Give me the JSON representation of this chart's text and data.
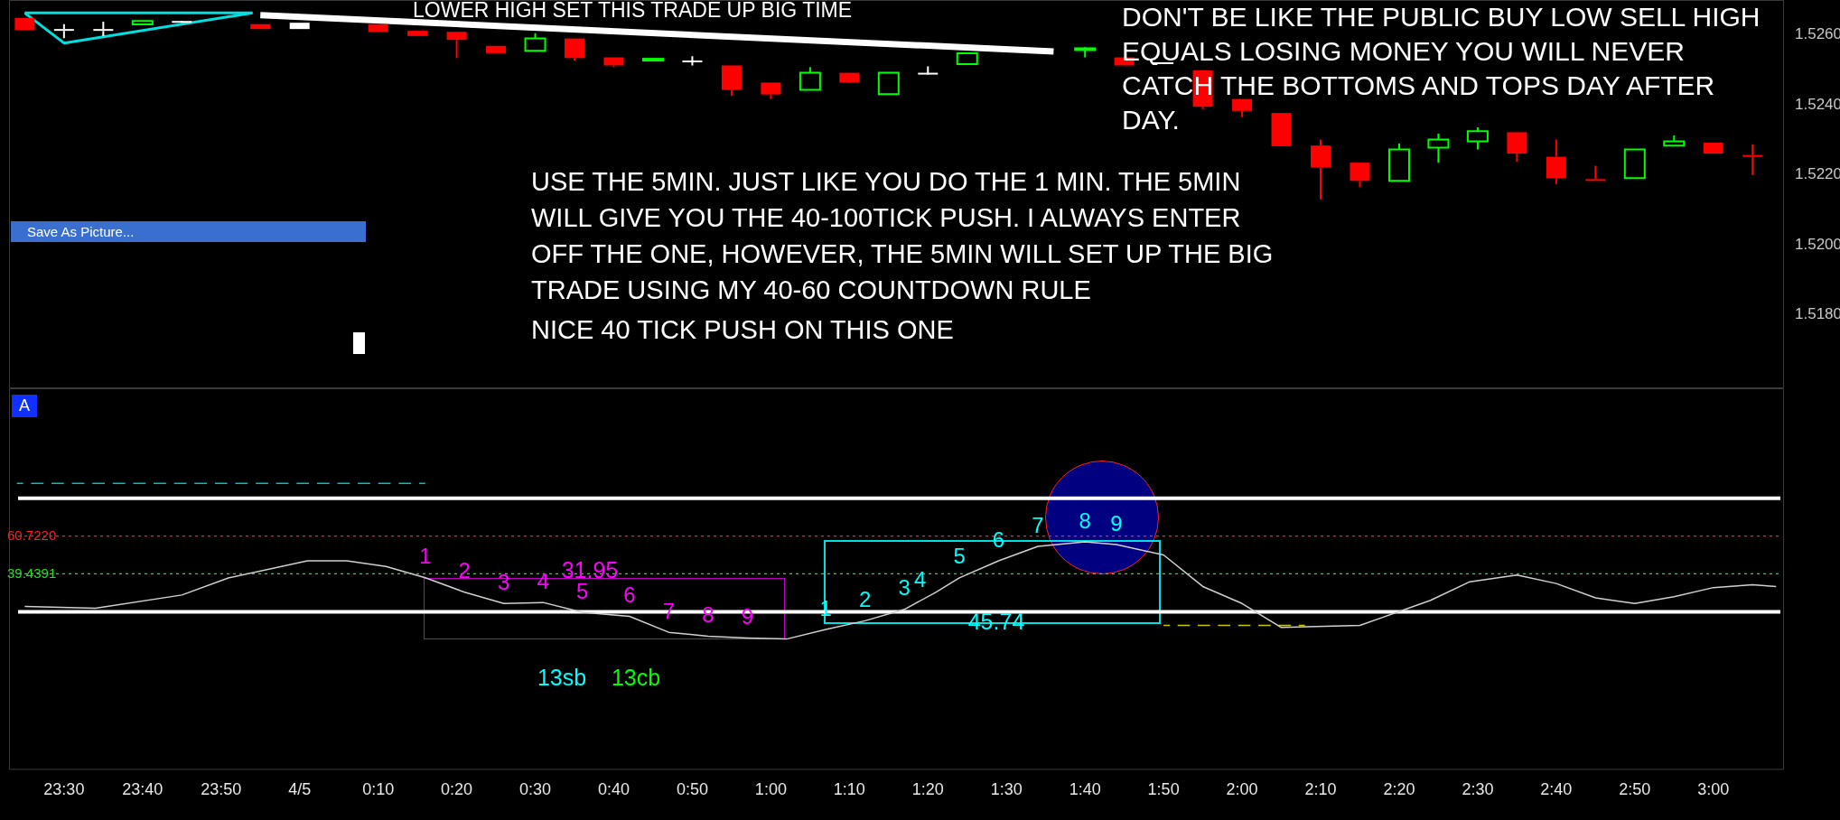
{
  "chart_data": [
    {
      "type": "candlestick",
      "x": [
        "--04-04T23:25",
        "--04-04T23:30",
        "--04-04T23:35",
        "--04-04T23:40",
        "--04-04T23:45",
        "--04-04T23:55",
        "--04-05T00:00",
        "--04-05T00:10",
        "--04-05T00:15",
        "--04-05T00:20",
        "--04-05T00:25",
        "--04-05T00:30",
        "--04-05T00:35",
        "--04-05T00:40",
        "--04-05T00:45",
        "--04-05T00:50",
        "--04-05T00:55",
        "--04-05T01:00",
        "--04-05T01:05",
        "--04-05T01:10",
        "--04-05T01:15",
        "--04-05T01:20",
        "--04-05T01:25",
        "--04-05T01:40",
        "--04-05T01:45",
        "--04-05T01:50",
        "--04-05T01:55",
        "--04-05T02:00",
        "--04-05T02:05",
        "--04-05T02:10",
        "--04-05T02:15",
        "--04-05T02:20",
        "--04-05T02:25",
        "--04-05T02:30",
        "--04-05T02:35",
        "--04-05T02:40",
        "--04-05T02:45",
        "--04-05T02:50",
        "--04-05T02:55",
        "--04-05T03:00",
        "--04-05T03:05"
      ],
      "ohlc": [
        [
          1.52649,
          1.52649,
          1.52614,
          1.52614
        ],
        [
          1.52617,
          1.52631,
          1.52591,
          1.52617
        ],
        [
          1.52617,
          1.52638,
          1.52597,
          1.52617
        ],
        [
          1.5263,
          1.5264,
          1.5263,
          1.5264
        ],
        [
          1.5264,
          1.5264,
          1.5264,
          1.5264
        ],
        [
          1.52631,
          1.52631,
          1.52617,
          1.52617
        ],
        [
          1.52635,
          1.52635,
          1.52617,
          1.52617
        ],
        [
          1.52631,
          1.52631,
          1.52609,
          1.52609
        ],
        [
          1.52612,
          1.52612,
          1.52597,
          1.52597
        ],
        [
          1.52609,
          1.52609,
          1.52534,
          1.52586
        ],
        [
          1.52569,
          1.52569,
          1.52548,
          1.52548
        ],
        [
          1.52555,
          1.52605,
          1.52555,
          1.5259
        ],
        [
          1.5259,
          1.5259,
          1.52527,
          1.52534
        ],
        [
          1.52536,
          1.52536,
          1.52508,
          1.52513
        ],
        [
          1.52528,
          1.52532,
          1.52528,
          1.52532
        ],
        [
          1.52527,
          1.52539,
          1.52513,
          1.52527
        ],
        [
          1.52513,
          1.52513,
          1.52426,
          1.52443
        ],
        [
          1.52464,
          1.52464,
          1.52417,
          1.5243
        ],
        [
          1.52443,
          1.52508,
          1.52443,
          1.52492
        ],
        [
          1.52492,
          1.52492,
          1.52464,
          1.52464
        ],
        [
          1.52431,
          1.52492,
          1.52431,
          1.52492
        ],
        [
          1.52492,
          1.5251,
          1.52492,
          1.52492
        ],
        [
          1.52517,
          1.52548,
          1.52517,
          1.52548
        ],
        [
          1.52557,
          1.52565,
          1.52536,
          1.52562
        ],
        [
          1.52536,
          1.52536,
          1.52513,
          1.52513
        ],
        [
          1.52522,
          1.52522,
          1.52522,
          1.52522
        ],
        [
          1.52499,
          1.52499,
          1.52388,
          1.52395
        ],
        [
          1.52417,
          1.52417,
          1.52365,
          1.52383
        ],
        [
          1.52377,
          1.52377,
          1.52282,
          1.52282
        ],
        [
          1.52284,
          1.52301,
          1.5213,
          1.52221
        ],
        [
          1.52235,
          1.52235,
          1.52165,
          1.52183
        ],
        [
          1.52183,
          1.5229,
          1.52183,
          1.52273
        ],
        [
          1.52278,
          1.52318,
          1.52235,
          1.52301
        ],
        [
          1.52296,
          1.52336,
          1.52273,
          1.52325
        ],
        [
          1.52322,
          1.52322,
          1.52238,
          1.52261
        ],
        [
          1.52252,
          1.52301,
          1.52174,
          1.52191
        ],
        [
          1.52188,
          1.52226,
          1.52183,
          1.52186
        ],
        [
          1.52191,
          1.52273,
          1.52191,
          1.52273
        ],
        [
          1.52284,
          1.52313,
          1.52284,
          1.52296
        ],
        [
          1.52292,
          1.52292,
          1.52261,
          1.52261
        ],
        [
          1.52257,
          1.52287,
          1.522,
          1.52256
        ]
      ],
      "colors": [
        "#ff0000",
        "#ffffff",
        "#ffffff",
        "#00ff00",
        "#ffffff",
        "#ff0000",
        "#ffffff",
        "#ff0000",
        "#ff0000",
        "#ff0000",
        "#ff0000",
        "#00ff00",
        "#ff0000",
        "#ff0000",
        "#00ff00",
        "#ffffff",
        "#ff0000",
        "#ff0000",
        "#00ff00",
        "#ff0000",
        "#00ff00",
        "#ffffff",
        "#00ff00",
        "#00ff00",
        "#ff0000",
        "#ffffff",
        "#ff0000",
        "#ff0000",
        "#ff0000",
        "#ff0000",
        "#ff0000",
        "#00ff00",
        "#00ff00",
        "#00ff00",
        "#ff0000",
        "#ff0000",
        "#ff0000",
        "#00ff00",
        "#00ff00",
        "#ff0000",
        "#ff0000"
      ],
      "series": [
        {
          "type": "line",
          "color": "#ffffff",
          "x": [
            "--04-04T23:55",
            "--04-05T01:36"
          ],
          "values": [
            1.52657,
            1.52553
          ]
        },
        {
          "type": "line",
          "color": "#00e0e0",
          "x": [
            "--04-04T23:25",
            "--04-04T23:30",
            "--04-04T23:54"
          ],
          "values": [
            1.52663,
            1.52577,
            1.52663
          ]
        },
        {
          "type": "line",
          "color": "#00e0e0",
          "x": [
            "--04-04T23:25",
            "--04-04T23:54"
          ],
          "values": [
            1.52663,
            1.52663
          ]
        }
      ],
      "xlim": [
        "--04-04T23:23",
        "--04-05T03:09"
      ],
      "ylim": [
        1.5159,
        1.527
      ],
      "yticks": [
        {
          "value": 1.518,
          "label": "1.5180"
        },
        {
          "value": 1.52,
          "label": "1.5200"
        },
        {
          "value": 1.522,
          "label": "1.5220"
        },
        {
          "value": 1.524,
          "label": "1.5240"
        },
        {
          "value": 1.526,
          "label": "1.5260"
        }
      ],
      "tick_labels": "y",
      "grid": false,
      "legend": false,
      "marker": "none",
      "annotations": [
        "LOWER HIGH SET THIS TRADE UP BIG TIME",
        "DON'T BE LIKE THE PUBLIC BUY LOW SELL HIGH EQUALS LOSING MONEY YOU WILL NEVER CATCH THE BOTTOMS AND TOPS DAY AFTER DAY.",
        "USE THE 5MIN. JUST LIKE YOU DO THE 1 MIN. THE 5MIN WILL GIVE YOU THE 40-100TICK PUSH. I ALWAYS ENTER OFF THE ONE, HOWEVER, THE 5MIN WILL SET UP THE BIG TRADE USING MY 40-60 COUNTDOWN RULE",
        "NICE 40 TICK PUSH ON THIS ONE",
        "Save As Picture..."
      ]
    },
    {
      "type": "line",
      "series": [
        {
          "color": "#d0d0d0",
          "x": [
            "--04-04T23:25",
            "--04-04T23:34",
            "--04-04T23:45",
            "--04-04T23:51",
            "--04-05T00:01",
            "--04-05T00:06",
            "--04-05T00:11",
            "--04-05T00:16",
            "--04-05T00:21",
            "--04-05T00:26",
            "--04-05T00:31",
            "--04-05T00:36",
            "--04-05T00:42",
            "--04-05T00:47",
            "--04-05T00:52",
            "--04-05T00:57",
            "--04-05T01:02",
            "--04-05T01:07",
            "--04-05T01:12",
            "--04-05T01:17",
            "--04-05T01:21",
            "--04-05T01:24",
            "--04-05T01:29",
            "--04-05T01:34",
            "--04-05T01:40",
            "--04-05T01:44",
            "--04-05T01:50",
            "--04-05T01:55",
            "--04-05T02:00",
            "--04-05T02:05",
            "--04-05T02:15",
            "--04-05T02:24",
            "--04-05T02:29",
            "--04-05T02:35",
            "--04-05T02:40",
            "--04-05T02:45",
            "--04-05T02:50",
            "--04-05T02:55",
            "--04-05T03:00",
            "--04-05T03:05",
            "--04-05T03:08"
          ],
          "values": [
            21.1,
            20.1,
            27.5,
            37.2,
            46.8,
            46.8,
            43.6,
            37.2,
            29.1,
            22.7,
            23.3,
            17.8,
            15.5,
            6.5,
            4.3,
            3.3,
            2.7,
            8.1,
            13.0,
            19.4,
            29.0,
            37.2,
            46.8,
            54.9,
            57.5,
            55.9,
            50.1,
            32.3,
            22.7,
            9.2,
            10.4,
            24.5,
            35.0,
            38.8,
            34.0,
            25.9,
            22.7,
            26.5,
            31.7,
            33.3,
            32.3
          ]
        },
        {
          "color": "#00c0c0",
          "line_style": "dashed",
          "x": [
            "--04-04T23:24",
            "--04-05T00:16"
          ],
          "values": [
            90.4,
            90.4
          ]
        },
        {
          "color": "#c8c800",
          "line_style": "dashed",
          "x": [
            "--04-05T01:50",
            "--04-05T02:08"
          ],
          "values": [
            10.4,
            10.4
          ]
        }
      ],
      "xlim": [
        "--04-04T23:23",
        "--04-05T03:09"
      ],
      "xticks": [
        {
          "value": "--04-04T23:30",
          "label": "23:30"
        },
        {
          "value": "--04-04T23:40",
          "label": "23:40"
        },
        {
          "value": "--04-04T23:50",
          "label": "23:50"
        },
        {
          "value": "--04-05T00:00",
          "label": "4/5"
        },
        {
          "value": "--04-05T00:10",
          "label": "0:10"
        },
        {
          "value": "--04-05T00:20",
          "label": "0:20"
        },
        {
          "value": "--04-05T00:30",
          "label": "0:30"
        },
        {
          "value": "--04-05T00:40",
          "label": "0:40"
        },
        {
          "value": "--04-05T00:50",
          "label": "0:50"
        },
        {
          "value": "--04-05T01:00",
          "label": "1:00"
        },
        {
          "value": "--04-05T01:10",
          "label": "1:10"
        },
        {
          "value": "--04-05T01:20",
          "label": "1:20"
        },
        {
          "value": "--04-05T01:30",
          "label": "1:30"
        },
        {
          "value": "--04-05T01:40",
          "label": "1:40"
        },
        {
          "value": "--04-05T01:50",
          "label": "1:50"
        },
        {
          "value": "--04-05T02:00",
          "label": "2:00"
        },
        {
          "value": "--04-05T02:10",
          "label": "2:10"
        },
        {
          "value": "--04-05T02:20",
          "label": "2:20"
        },
        {
          "value": "--04-05T02:30",
          "label": "2:30"
        },
        {
          "value": "--04-05T02:40",
          "label": "2:40"
        },
        {
          "value": "--04-05T02:50",
          "label": "2:50"
        },
        {
          "value": "--04-05T03:00",
          "label": "3:00"
        }
      ],
      "ylim": [
        -71,
        144
      ],
      "yticks": [
        {
          "value": 60.722,
          "label": "60.7220"
        },
        {
          "value": 39.4391,
          "label": "39.4391"
        }
      ],
      "ref_lines": [
        {
          "axis": "y",
          "value": 82,
          "color": "#ffffff",
          "line_style": "solid"
        },
        {
          "axis": "y",
          "value": 18,
          "color": "#ffffff",
          "line_style": "solid"
        },
        {
          "axis": "y",
          "value": 60.722,
          "color": "#ff2020",
          "line_style": "dotted"
        },
        {
          "axis": "y",
          "value": 39.4391,
          "color": "#20e020",
          "line_style": "dotted"
        }
      ],
      "grid": false,
      "legend": false,
      "marker": "none",
      "annotations": [
        "A",
        "31.95",
        "45.74",
        "13sb",
        "13cb",
        {
          "text": "1",
          "x": "--04-05T00:16",
          "y": 37.2
        },
        {
          "text": "2",
          "x": "--04-05T00:21",
          "y": 29.1
        },
        {
          "text": "3",
          "x": "--04-05T00:26",
          "y": 22.7
        },
        {
          "text": "4",
          "x": "--04-05T00:31",
          "y": 23.3
        },
        {
          "text": "5",
          "x": "--04-05T00:36",
          "y": 17.8
        },
        {
          "text": "6",
          "x": "--04-05T00:42",
          "y": 15.5
        },
        {
          "text": "7",
          "x": "--04-05T00:47",
          "y": 6.5
        },
        {
          "text": "8",
          "x": "--04-05T00:52",
          "y": 4.3
        },
        {
          "text": "9",
          "x": "--04-05T00:57",
          "y": 3.3
        },
        {
          "text": "1",
          "x": "--04-05T01:07",
          "y": 8.1
        },
        {
          "text": "2",
          "x": "--04-05T01:12",
          "y": 13.0
        },
        {
          "text": "3",
          "x": "--04-05T01:17",
          "y": 19.4
        },
        {
          "text": "4",
          "x": "--04-05T01:19",
          "y": 24.2
        },
        {
          "text": "5",
          "x": "--04-05T01:24",
          "y": 37.2
        },
        {
          "text": "6",
          "x": "--04-05T01:29",
          "y": 46.8
        },
        {
          "text": "7",
          "x": "--04-05T01:34",
          "y": 54.9
        },
        {
          "text": "8",
          "x": "--04-05T01:40",
          "y": 57.5
        },
        {
          "text": "9",
          "x": "--04-05T01:44",
          "y": 55.9
        }
      ]
    }
  ]
}
